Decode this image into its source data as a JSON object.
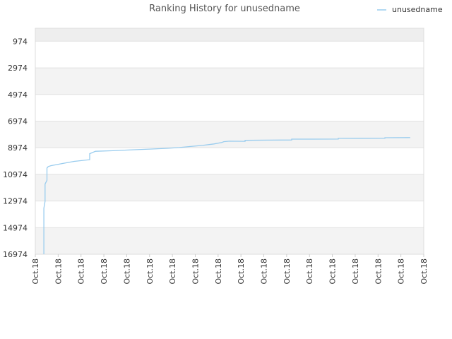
{
  "chart_data": {
    "type": "line",
    "title": "Ranking History for unusedname",
    "xlabel": "",
    "ylabel": "",
    "y_reversed": true,
    "ylim": [
      16974,
      0
    ],
    "yticks": [
      974,
      2974,
      4974,
      6974,
      8974,
      10974,
      12974,
      14974,
      16974
    ],
    "xtick_labels": [
      "Oct.18",
      "Oct.18",
      "Oct.18",
      "Oct.18",
      "Oct.18",
      "Oct.18",
      "Oct.18",
      "Oct.18",
      "Oct.18",
      "Oct.18",
      "Oct.18",
      "Oct.18",
      "Oct.18",
      "Oct.18",
      "Oct.18",
      "Oct.18",
      "Oct.18",
      "Oct.18"
    ],
    "grid": true,
    "legend_position": "top-right",
    "series": [
      {
        "name": "unusedname",
        "color": "#99ccee",
        "points": [
          [
            0.022,
            16974
          ],
          [
            0.022,
            13520
          ],
          [
            0.025,
            13000
          ],
          [
            0.025,
            11700
          ],
          [
            0.03,
            11420
          ],
          [
            0.03,
            10500
          ],
          [
            0.033,
            10390
          ],
          [
            0.04,
            10320
          ],
          [
            0.07,
            10160
          ],
          [
            0.1,
            10000
          ],
          [
            0.14,
            9870
          ],
          [
            0.14,
            9420
          ],
          [
            0.155,
            9240
          ],
          [
            0.2,
            9200
          ],
          [
            0.25,
            9130
          ],
          [
            0.3,
            9070
          ],
          [
            0.34,
            9020
          ],
          [
            0.37,
            8960
          ],
          [
            0.4,
            8880
          ],
          [
            0.43,
            8800
          ],
          [
            0.46,
            8690
          ],
          [
            0.48,
            8580
          ],
          [
            0.485,
            8520
          ],
          [
            0.5,
            8480
          ],
          [
            0.54,
            8490
          ],
          [
            0.54,
            8420
          ],
          [
            0.6,
            8400
          ],
          [
            0.66,
            8390
          ],
          [
            0.66,
            8330
          ],
          [
            0.72,
            8330
          ],
          [
            0.78,
            8320
          ],
          [
            0.78,
            8270
          ],
          [
            0.9,
            8260
          ],
          [
            0.9,
            8220
          ],
          [
            0.965,
            8210
          ]
        ]
      }
    ]
  }
}
